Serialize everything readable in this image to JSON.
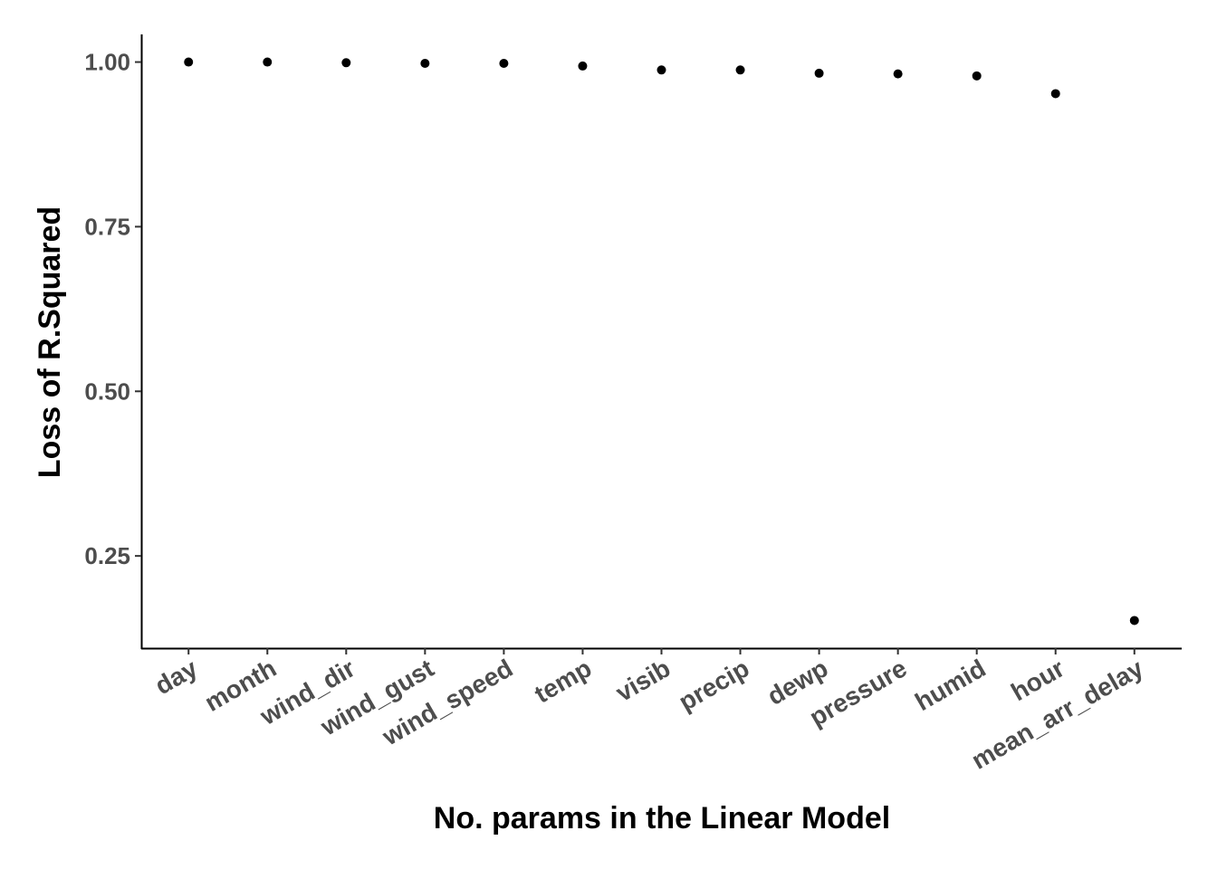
{
  "chart_data": {
    "type": "scatter",
    "title": "",
    "xlabel": "No. params in the Linear Model",
    "ylabel": "Loss of R.Squared",
    "categories": [
      "day",
      "month",
      "wind_dir",
      "wind_gust",
      "wind_speed",
      "temp",
      "visib",
      "precip",
      "dewp",
      "pressure",
      "humid",
      "hour",
      "mean_arr_delay"
    ],
    "values": [
      1.0,
      1.0,
      0.999,
      0.998,
      0.998,
      0.994,
      0.988,
      0.988,
      0.983,
      0.982,
      0.979,
      0.952,
      0.152
    ],
    "yticks": [
      0.25,
      0.5,
      0.75,
      1.0
    ],
    "ytick_labels": [
      "0.25",
      "0.50",
      "0.75",
      "1.00"
    ],
    "ylim": [
      0.11,
      1.042
    ],
    "grid": false,
    "legend": "none",
    "point_color": "#000000"
  }
}
